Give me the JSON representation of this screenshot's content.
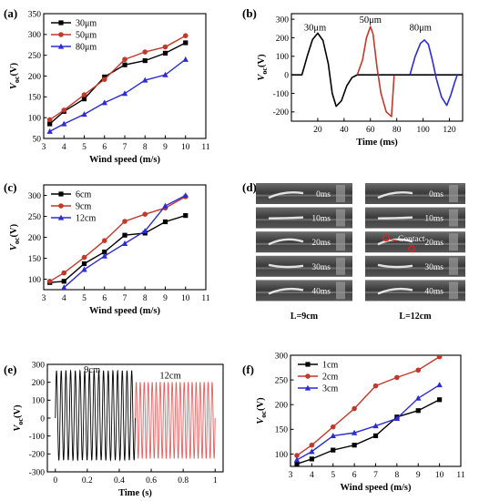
{
  "chart_data": [
    {
      "id": "a",
      "panel_label": "(a)",
      "type": "line",
      "xlabel": "Wind speed (m/s)",
      "ylabel_main": "V",
      "ylabel_sub": "oc",
      "ylabel_unit": "(V)",
      "xlim": [
        3,
        11
      ],
      "ylim": [
        50,
        350
      ],
      "xticks": [
        3,
        4,
        5,
        6,
        7,
        8,
        9,
        10,
        11
      ],
      "yticks": [
        50,
        100,
        150,
        200,
        250,
        300,
        350
      ],
      "legend_position": "top-left",
      "x": [
        3.3,
        4,
        5,
        6,
        7,
        8,
        9,
        10
      ],
      "series": [
        {
          "name": "30μm",
          "color": "#000000",
          "marker": "square",
          "values": [
            85,
            115,
            145,
            198,
            227,
            237,
            255,
            280
          ]
        },
        {
          "name": "50μm",
          "color": "#c0392b",
          "marker": "circle",
          "values": [
            95,
            118,
            155,
            192,
            240,
            258,
            270,
            297
          ]
        },
        {
          "name": "80μm",
          "color": "#2c2cd0",
          "marker": "triangle",
          "values": [
            67,
            85,
            108,
            136,
            158,
            190,
            203,
            240
          ]
        }
      ]
    },
    {
      "id": "b",
      "panel_label": "(b)",
      "type": "line",
      "xlabel": "Time (ms)",
      "ylabel_main": "V",
      "ylabel_sub": "oc",
      "ylabel_unit": "(V)",
      "xlim": [
        0,
        130
      ],
      "ylim": [
        -250,
        330
      ],
      "xticks": [
        20,
        40,
        60,
        80,
        100,
        120
      ],
      "yticks": [
        -200,
        -100,
        0,
        100,
        200,
        300
      ],
      "annotations": [
        {
          "text": "30μm",
          "x": 18,
          "y": 240
        },
        {
          "text": "50μm",
          "x": 60,
          "y": 280
        },
        {
          "text": "80μm",
          "x": 98,
          "y": 240
        }
      ],
      "series": [
        {
          "name": "30μm",
          "color": "#000000",
          "x": [
            0,
            8,
            12,
            16,
            20,
            24,
            28,
            31,
            34,
            38,
            42,
            46,
            50,
            55,
            70,
            90,
            130
          ],
          "values": [
            0,
            0,
            100,
            190,
            225,
            185,
            60,
            -100,
            -170,
            -140,
            -60,
            -15,
            0,
            0,
            0,
            0,
            0
          ]
        },
        {
          "name": "50μm",
          "color": "#c0392b",
          "x": [
            50,
            54,
            57,
            60,
            62,
            65,
            68,
            72,
            76,
            78
          ],
          "values": [
            0,
            80,
            200,
            260,
            220,
            40,
            -100,
            -200,
            -225,
            -5
          ]
        },
        {
          "name": "80μm",
          "color": "#2c2cd0",
          "x": [
            90,
            94,
            98,
            101,
            104,
            107,
            110,
            114,
            118,
            121,
            124,
            126
          ],
          "values": [
            0,
            100,
            170,
            188,
            165,
            80,
            -20,
            -120,
            -165,
            -110,
            -40,
            0
          ]
        }
      ]
    },
    {
      "id": "c",
      "panel_label": "(c)",
      "type": "line",
      "xlabel": "Wind speed (m/s)",
      "ylabel_main": "V",
      "ylabel_sub": "oc",
      "ylabel_unit": "(V)",
      "xlim": [
        3,
        11
      ],
      "ylim": [
        75,
        325
      ],
      "xticks": [
        3,
        4,
        5,
        6,
        7,
        8,
        9,
        10,
        11
      ],
      "yticks": [
        100,
        150,
        200,
        250,
        300
      ],
      "legend_position": "top-left",
      "x": [
        3.3,
        4,
        5,
        6,
        7,
        8,
        9,
        10
      ],
      "series": [
        {
          "name": "6cm",
          "color": "#000000",
          "marker": "square",
          "values": [
            92,
            95,
            137,
            165,
            205,
            210,
            237,
            252
          ]
        },
        {
          "name": "9cm",
          "color": "#c0392b",
          "marker": "circle",
          "values": [
            95,
            115,
            152,
            192,
            238,
            255,
            270,
            297
          ]
        },
        {
          "name": "12cm",
          "color": "#2c2cd0",
          "marker": "triangle",
          "values": [
            null,
            80,
            123,
            155,
            185,
            215,
            275,
            300
          ]
        }
      ]
    },
    {
      "id": "e",
      "panel_label": "(e)",
      "type": "line",
      "xlabel": "Time (s)",
      "ylabel_main": "V",
      "ylabel_sub": "oc",
      "ylabel_unit": "(V)",
      "xlim": [
        -0.05,
        1.05
      ],
      "ylim": [
        -300,
        300
      ],
      "xticks": [
        0.0,
        0.2,
        0.4,
        0.6,
        0.8,
        1.0
      ],
      "yticks": [
        -300,
        -200,
        -100,
        0,
        100,
        200,
        300
      ],
      "annotations": [
        {
          "text": "9cm",
          "x": 0.23,
          "y": 255
        },
        {
          "text": "12cm",
          "x": 0.72,
          "y": 220
        }
      ],
      "series": [
        {
          "name": "9cm",
          "color": "#000000",
          "t_start": 0.0,
          "t_end": 0.5,
          "cycles": 17,
          "amplitude_pos": 265,
          "amplitude_neg": 235
        },
        {
          "name": "12cm",
          "color": "#e06060",
          "t_start": 0.5,
          "t_end": 1.0,
          "cycles": 20,
          "amplitude_pos": 200,
          "amplitude_neg": 225
        }
      ]
    },
    {
      "id": "f",
      "panel_label": "(f)",
      "type": "line",
      "xlabel": "Wind speed (m/s)",
      "ylabel_main": "V",
      "ylabel_sub": "oc",
      "ylabel_unit": "(V)",
      "xlim": [
        3,
        11
      ],
      "ylim": [
        75,
        300
      ],
      "xticks": [
        3,
        4,
        5,
        6,
        7,
        8,
        9,
        10,
        11
      ],
      "yticks": [
        100,
        150,
        200,
        250,
        300
      ],
      "legend_position": "top-left",
      "x": [
        3.3,
        4,
        5,
        6,
        7,
        8,
        9,
        10
      ],
      "series": [
        {
          "name": "1cm",
          "color": "#000000",
          "marker": "square",
          "values": [
            80,
            90,
            108,
            118,
            137,
            175,
            188,
            210
          ]
        },
        {
          "name": "2cm",
          "color": "#c0392b",
          "marker": "circle",
          "values": [
            97,
            118,
            155,
            192,
            238,
            255,
            270,
            297
          ]
        },
        {
          "name": "3cm",
          "color": "#2c2cd0",
          "marker": "triangle",
          "values": [
            88,
            105,
            137,
            143,
            157,
            172,
            213,
            240
          ]
        }
      ]
    }
  ],
  "photo_panel": {
    "panel_label": "(d)",
    "times": [
      "0ms",
      "10ms",
      "20ms",
      "30ms",
      "40ms"
    ],
    "contact_label": "Contact",
    "captions": [
      "L=9cm",
      "L=12cm"
    ]
  }
}
